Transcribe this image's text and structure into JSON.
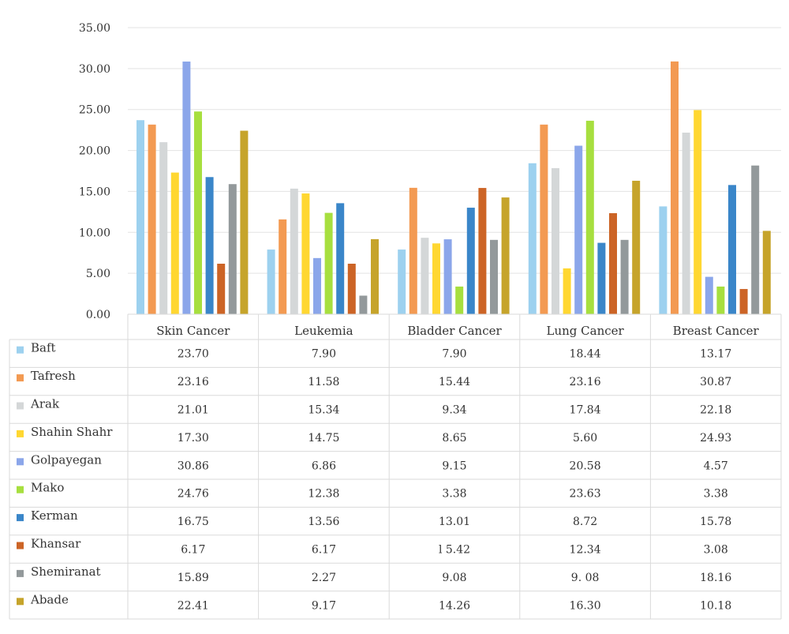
{
  "chart_data": {
    "type": "bar",
    "title": "",
    "xlabel": "",
    "ylabel": "",
    "ylim": [
      0,
      35
    ],
    "yticks": [
      "0.00",
      "5.00",
      "10.00",
      "15.00",
      "20.00",
      "25.00",
      "30.00",
      "35.00"
    ],
    "grid": true,
    "legend": "data-table-below",
    "categories": [
      "Skin Cancer",
      "Leukemia",
      "Bladder Cancer",
      "Lung Cancer",
      "Breast Cancer"
    ],
    "series": [
      {
        "name": "Baft",
        "color": "#9DD1EF",
        "values": [
          23.7,
          7.9,
          7.9,
          18.44,
          13.17
        ],
        "labels": [
          "23.70",
          "7.90",
          "7.90",
          "18.44",
          "13.17"
        ]
      },
      {
        "name": "Tafresh",
        "color": "#F39A52",
        "values": [
          23.16,
          11.58,
          15.44,
          23.16,
          30.87
        ],
        "labels": [
          "23.16",
          "11.58",
          "15.44",
          "23.16",
          "30.87"
        ]
      },
      {
        "name": "Arak",
        "color": "#D4D7D8",
        "values": [
          21.01,
          15.34,
          9.34,
          17.84,
          22.18
        ],
        "labels": [
          "21.01",
          "15.34",
          "9.34",
          "17.84",
          "22.18"
        ]
      },
      {
        "name": "Shahin Shahr",
        "color": "#FFD731",
        "values": [
          17.3,
          14.75,
          8.65,
          5.6,
          24.93
        ],
        "labels": [
          "17.30",
          "14.75",
          "8.65",
          "5.60",
          "24.93"
        ]
      },
      {
        "name": "Golpayegan",
        "color": "#8BA6EA",
        "values": [
          30.86,
          6.86,
          9.15,
          20.58,
          4.57
        ],
        "labels": [
          "30.86",
          "6.86",
          "9.15",
          "20.58",
          "4.57"
        ]
      },
      {
        "name": "Mako",
        "color": "#A7DF3F",
        "values": [
          24.76,
          12.38,
          3.38,
          23.63,
          3.38
        ],
        "labels": [
          "24.76",
          "12.38",
          "3.38",
          "23.63",
          "3.38"
        ]
      },
      {
        "name": "Kerman",
        "color": "#3A86C9",
        "values": [
          16.75,
          13.56,
          13.01,
          8.72,
          15.78
        ],
        "labels": [
          "16.75",
          "13.56",
          "13.01",
          "8.72",
          "15.78"
        ]
      },
      {
        "name": "Khansar",
        "color": "#CC6426",
        "values": [
          6.17,
          6.17,
          15.42,
          12.34,
          3.08
        ],
        "labels": [
          "6.17",
          "6.17",
          "l 5.42",
          "12.34",
          "3.08"
        ]
      },
      {
        "name": "Shemiranat",
        "color": "#93999B",
        "values": [
          15.89,
          2.27,
          9.08,
          9.08,
          18.16
        ],
        "labels": [
          "15.89",
          "2.27",
          "9.08",
          "9. 08",
          "18.16"
        ]
      },
      {
        "name": "Abade",
        "color": "#C6A42B",
        "values": [
          22.41,
          9.17,
          14.26,
          16.3,
          10.18
        ],
        "labels": [
          "22.41",
          "9.17",
          "14.26",
          "16.30",
          "10.18"
        ]
      }
    ]
  }
}
